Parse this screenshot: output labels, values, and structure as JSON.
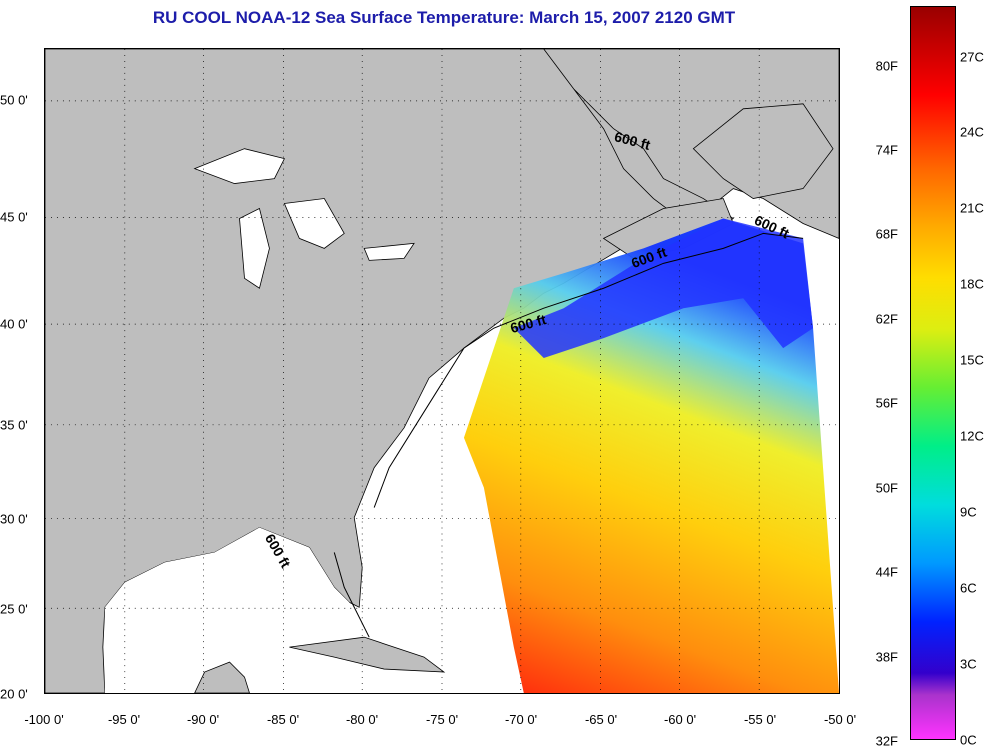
{
  "title": "RU COOL  NOAA-12  Sea Surface Temperature:  March 15, 2007 2120 GMT",
  "x_axis": {
    "ticks": [
      "-100 0'",
      "-95 0'",
      "-90 0'",
      "-85 0'",
      "-80 0'",
      "-75 0'",
      "-70 0'",
      "-65 0'",
      "-60 0'",
      "-55 0'",
      "-50 0'"
    ],
    "range": [
      -100,
      -50
    ]
  },
  "y_axis": {
    "ticks": [
      "50 0'",
      "45 0'",
      "40 0'",
      "35 0'",
      "30 0'",
      "25 0'",
      "20 0'"
    ],
    "range": [
      20,
      52.5
    ]
  },
  "grid": "dotted",
  "isobath_label": "600 ft",
  "colorbar": {
    "fahrenheit": [
      "80F",
      "74F",
      "68F",
      "62F",
      "56F",
      "50F",
      "44F",
      "38F",
      "32F"
    ],
    "celsius": [
      "27C",
      "24C",
      "21C",
      "18C",
      "15C",
      "12C",
      "9C",
      "6C",
      "3C",
      "0C"
    ]
  },
  "colors": {
    "land": "#bebebe",
    "title": "#1d1daa",
    "water_nodata": "#ffffff"
  }
}
